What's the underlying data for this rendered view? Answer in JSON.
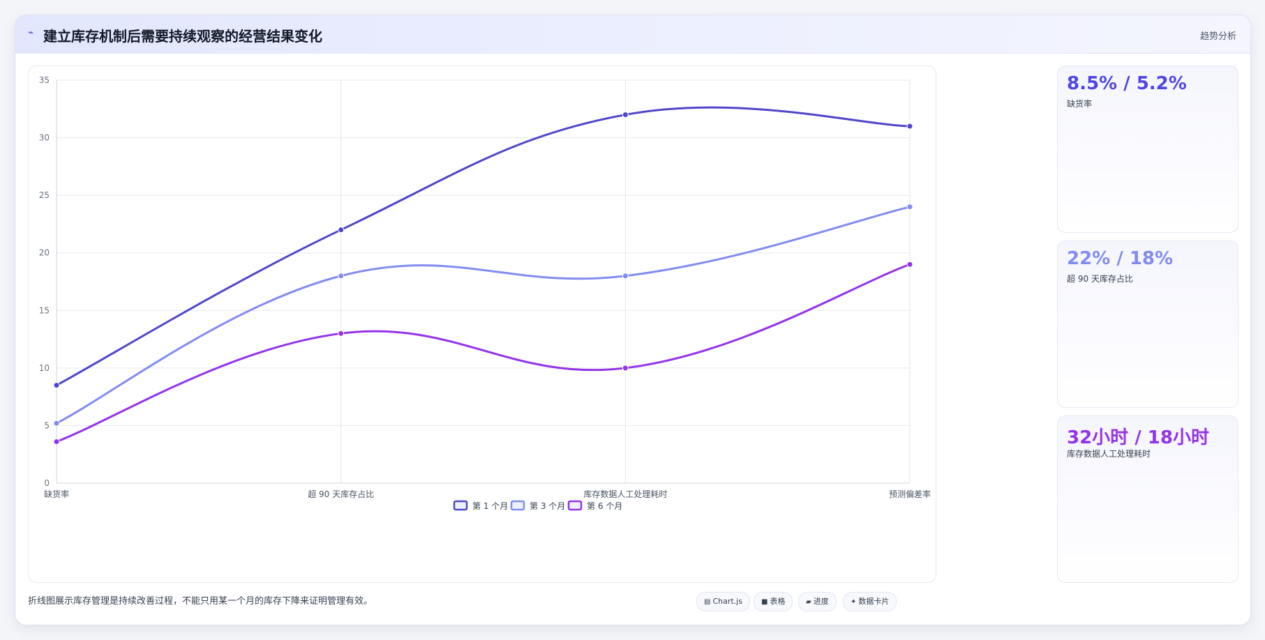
{
  "header": {
    "icon": "trend-icon",
    "title": "建立库存机制后需要持续观察的经营结果变化",
    "tag": "趋势分析"
  },
  "chart_data": {
    "type": "line",
    "categories": [
      "缺货率",
      "超 90 天库存占比",
      "库存数据人工处理耗时",
      "预测偏差率"
    ],
    "series": [
      {
        "name": "第 1 个月",
        "values": [
          8.5,
          22,
          32,
          31
        ],
        "color": "#4f46c9"
      },
      {
        "name": "第 3 个月",
        "values": [
          5.2,
          18,
          18,
          24
        ],
        "color": "#818cf0"
      },
      {
        "name": "第 6 个月",
        "values": [
          3.6,
          13,
          10,
          19
        ],
        "color": "#9333ea"
      }
    ],
    "ylim": [
      0,
      35
    ],
    "yticks": [
      0,
      5,
      10,
      15,
      20,
      25,
      30,
      35
    ],
    "grid": true,
    "legend_position": "bottom"
  },
  "kpis": [
    {
      "value": "8.5% / 5.2%",
      "label": "缺货率",
      "color": "#4f46e5"
    },
    {
      "value": "22% / 18%",
      "label": "超 90 天库存占比",
      "color": "#818cf0"
    },
    {
      "value": "32小时 / 18小时",
      "label": "库存数据人工处理耗时",
      "color": "#9333ea"
    }
  ],
  "footer": {
    "note": "折线图展示库存管理是持续改善过程，不能只用某一个月的库存下降来证明管理有效。",
    "chips": [
      {
        "icon": "chart-icon",
        "label": "Chart.js"
      },
      {
        "icon": "table-icon",
        "label": "表格"
      },
      {
        "icon": "progress-icon",
        "label": "进度"
      },
      {
        "icon": "sparkle-icon",
        "label": "数据卡片"
      }
    ]
  }
}
